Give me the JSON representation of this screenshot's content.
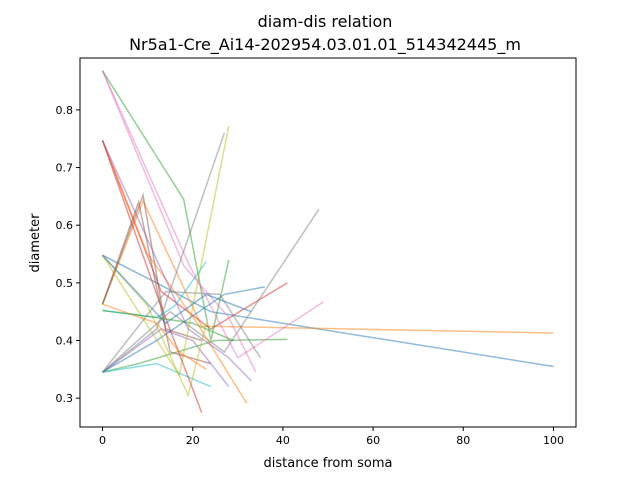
{
  "chart_data": {
    "type": "line",
    "title_line1": "diam-dis relation",
    "title_line2": "Nr5a1-Cre_Ai14-202954.03.01.01_514342445_m",
    "xlabel": "distance from soma",
    "ylabel": "diameter",
    "xlim": [
      -5,
      105
    ],
    "ylim": [
      0.25,
      0.89
    ],
    "xticks": [
      0,
      20,
      40,
      60,
      80,
      100
    ],
    "yticks": [
      0.3,
      0.4,
      0.5,
      0.6,
      0.7,
      0.8
    ],
    "xtick_labels": [
      "0",
      "20",
      "40",
      "60",
      "80",
      "100"
    ],
    "ytick_labels": [
      "0.3",
      "0.4",
      "0.5",
      "0.6",
      "0.7",
      "0.8"
    ],
    "grid": false,
    "legend": "none",
    "series": [
      {
        "color": "#1f77b4",
        "x": [
          0,
          12,
          24,
          100
        ],
        "y": [
          0.548,
          0.5,
          0.45,
          0.355
        ]
      },
      {
        "color": "#ff7f0e",
        "x": [
          0,
          9,
          22,
          100
        ],
        "y": [
          0.463,
          0.642,
          0.425,
          0.413
        ]
      },
      {
        "color": "#2ca02c",
        "x": [
          0,
          8,
          25,
          41
        ],
        "y": [
          0.345,
          0.36,
          0.4,
          0.402
        ]
      },
      {
        "color": "#d62728",
        "x": [
          0,
          13,
          24,
          41
        ],
        "y": [
          0.747,
          0.485,
          0.42,
          0.5
        ]
      },
      {
        "color": "#9467bd",
        "x": [
          0,
          13,
          20,
          28
        ],
        "y": [
          0.345,
          0.42,
          0.4,
          0.32
        ]
      },
      {
        "color": "#8c564b",
        "x": [
          0,
          9,
          14,
          22
        ],
        "y": [
          0.463,
          0.652,
          0.42,
          0.4
        ]
      },
      {
        "color": "#e377c2",
        "x": [
          0,
          19,
          30,
          49
        ],
        "y": [
          0.868,
          0.535,
          0.37,
          0.467
        ]
      },
      {
        "color": "#7f7f7f",
        "x": [
          0,
          15,
          27,
          48
        ],
        "y": [
          0.345,
          0.45,
          0.38,
          0.628
        ]
      },
      {
        "color": "#bcbd22",
        "x": [
          0,
          17,
          28
        ],
        "y": [
          0.548,
          0.34,
          0.772
        ]
      },
      {
        "color": "#17becf",
        "x": [
          0,
          12,
          24
        ],
        "y": [
          0.345,
          0.36,
          0.32
        ]
      },
      {
        "color": "#1f77b4",
        "x": [
          0,
          12,
          27,
          36
        ],
        "y": [
          0.345,
          0.4,
          0.48,
          0.493
        ]
      },
      {
        "color": "#ff7f0e",
        "x": [
          0,
          10,
          21,
          32
        ],
        "y": [
          0.747,
          0.55,
          0.43,
          0.291
        ]
      },
      {
        "color": "#2ca02c",
        "x": [
          0,
          18,
          24,
          28
        ],
        "y": [
          0.868,
          0.645,
          0.4,
          0.54
        ]
      },
      {
        "color": "#d62728",
        "x": [
          0,
          12,
          22
        ],
        "y": [
          0.747,
          0.48,
          0.275
        ]
      },
      {
        "color": "#9467bd",
        "x": [
          0,
          19,
          28,
          33
        ],
        "y": [
          0.747,
          0.42,
          0.37,
          0.33
        ]
      },
      {
        "color": "#8c564b",
        "x": [
          0,
          8,
          15,
          24
        ],
        "y": [
          0.463,
          0.64,
          0.38,
          0.36
        ]
      },
      {
        "color": "#e377c2",
        "x": [
          0,
          18,
          28,
          34
        ],
        "y": [
          0.868,
          0.53,
          0.44,
          0.345
        ]
      },
      {
        "color": "#7f7f7f",
        "x": [
          0,
          12,
          20,
          27
        ],
        "y": [
          0.345,
          0.42,
          0.6,
          0.76
        ]
      },
      {
        "color": "#bcbd22",
        "x": [
          0,
          10,
          19,
          23
        ],
        "y": [
          0.548,
          0.46,
          0.305,
          0.43
        ]
      },
      {
        "color": "#17becf",
        "x": [
          0,
          12,
          16,
          23
        ],
        "y": [
          0.452,
          0.44,
          0.46,
          0.537
        ]
      },
      {
        "color": "#1f77b4",
        "x": [
          0,
          14,
          23,
          33
        ],
        "y": [
          0.548,
          0.43,
          0.48,
          0.45
        ]
      },
      {
        "color": "#ff7f0e",
        "x": [
          0,
          12,
          17,
          23
        ],
        "y": [
          0.463,
          0.43,
          0.38,
          0.35
        ]
      },
      {
        "color": "#2ca02c",
        "x": [
          0,
          12,
          20,
          29
        ],
        "y": [
          0.452,
          0.44,
          0.43,
          0.4
        ]
      },
      {
        "color": "#7f7f7f",
        "x": [
          0,
          14,
          26,
          35
        ],
        "y": [
          0.345,
          0.485,
          0.48,
          0.37
        ]
      }
    ]
  }
}
